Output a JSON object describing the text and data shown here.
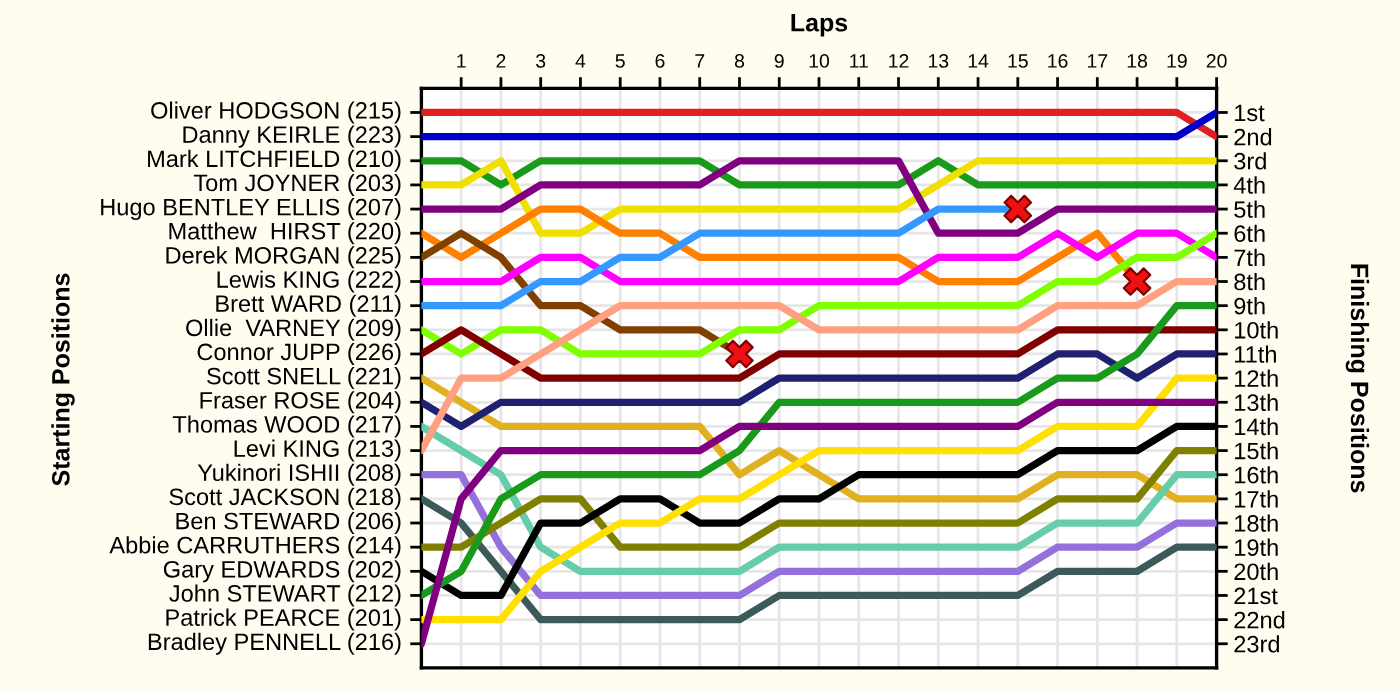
{
  "chart_data": {
    "type": "line",
    "xlabel": "Laps",
    "ylabel": "Finishing Positions",
    "x": [
      0,
      1,
      2,
      3,
      4,
      5,
      6,
      7,
      8,
      9,
      10,
      11,
      12,
      13,
      14,
      15,
      16,
      17,
      18,
      19,
      20
    ],
    "xlim": [
      0,
      20
    ],
    "xticks": [
      1,
      2,
      3,
      4,
      5,
      6,
      7,
      8,
      9,
      10,
      11,
      12,
      13,
      14,
      15,
      16,
      17,
      18,
      19,
      20
    ],
    "annotations": [
      "Starting Positions",
      "Oliver HODGSON (215)",
      "Danny KEIRLE (223)",
      "Mark LITCHFIELD (210)",
      "Tom JOYNER (203)",
      "Hugo BENTLEY ELLIS (207)",
      "Matthew  HIRST (220)",
      "Derek MORGAN (225)",
      "Lewis KING (222)",
      "Brett WARD (211)",
      "Ollie  VARNEY (209)",
      "Connor JUPP (226)",
      "Scott SNELL (221)",
      "Fraser ROSE (204)",
      "Thomas WOOD (217)",
      "Levi KING (213)",
      "Yukinori ISHII (208)",
      "Scott JACKSON (218)",
      "Ben STEWARD (206)",
      "Abbie CARRUTHERS (214)",
      "Gary EDWARDS (202)",
      "John STEWART (212)",
      "Patrick PEARCE (201)",
      "Bradley PENNELL (216)"
    ],
    "ylim": [
      24,
      0
    ],
    "yticks": [
      {
        "value": 1,
        "label": "1st"
      },
      {
        "value": 2,
        "label": "2nd"
      },
      {
        "value": 3,
        "label": "3rd"
      },
      {
        "value": 4,
        "label": "4th"
      },
      {
        "value": 5,
        "label": "5th"
      },
      {
        "value": 6,
        "label": "6th"
      },
      {
        "value": 7,
        "label": "7th"
      },
      {
        "value": 8,
        "label": "8th"
      },
      {
        "value": 9,
        "label": "9th"
      },
      {
        "value": 10,
        "label": "10th"
      },
      {
        "value": 11,
        "label": "11th"
      },
      {
        "value": 12,
        "label": "12th"
      },
      {
        "value": 13,
        "label": "13th"
      },
      {
        "value": 14,
        "label": "14th"
      },
      {
        "value": 15,
        "label": "15th"
      },
      {
        "value": 16,
        "label": "16th"
      },
      {
        "value": 17,
        "label": "17th"
      },
      {
        "value": 18,
        "label": "18th"
      },
      {
        "value": 19,
        "label": "19th"
      },
      {
        "value": 20,
        "label": "20th"
      },
      {
        "value": 21,
        "label": "21st"
      },
      {
        "value": 22,
        "label": "22nd"
      },
      {
        "value": 23,
        "label": "23rd"
      }
    ],
    "grid": true,
    "marker": "none",
    "line_style": "solid",
    "series": [
      {
        "color": "#e02020",
        "values": [
          1,
          1,
          1,
          1,
          1,
          1,
          1,
          1,
          1,
          1,
          1,
          1,
          1,
          1,
          1,
          1,
          1,
          1,
          1,
          1,
          2
        ]
      },
      {
        "color": "#0000cc",
        "values": [
          2,
          2,
          2,
          2,
          2,
          2,
          2,
          2,
          2,
          2,
          2,
          2,
          2,
          2,
          2,
          2,
          2,
          2,
          2,
          2,
          1
        ]
      },
      {
        "color": "#1a9a1a",
        "values": [
          3,
          3,
          4,
          3,
          3,
          3,
          3,
          3,
          4,
          4,
          4,
          4,
          4,
          3,
          4,
          4,
          4,
          4,
          4,
          4,
          4
        ]
      },
      {
        "color": "#f0e000",
        "values": [
          4,
          4,
          3,
          6,
          6,
          5,
          5,
          5,
          5,
          5,
          5,
          5,
          5,
          4,
          3,
          3,
          3,
          3,
          3,
          3,
          3
        ]
      },
      {
        "color": "#800080",
        "values": [
          5,
          5,
          5,
          4,
          4,
          4,
          4,
          4,
          3,
          3,
          3,
          3,
          3,
          6,
          6,
          6,
          5,
          5,
          5,
          5,
          5
        ]
      },
      {
        "color": "#ff8000",
        "values": [
          6,
          7,
          6,
          5,
          5,
          6,
          6,
          7,
          7,
          7,
          7,
          7,
          7,
          8,
          8,
          8,
          7,
          6,
          8,
          null,
          null
        ]
      },
      {
        "color": "#804000",
        "values": [
          7,
          6,
          7,
          9,
          9,
          10,
          10,
          10,
          11,
          null,
          null,
          null,
          null,
          null,
          null,
          null,
          null,
          null,
          null,
          null,
          null
        ]
      },
      {
        "color": "#ff00ff",
        "values": [
          8,
          8,
          8,
          7,
          7,
          8,
          8,
          8,
          8,
          8,
          8,
          8,
          8,
          7,
          7,
          7,
          6,
          7,
          6,
          6,
          7
        ]
      },
      {
        "color": "#3399ff",
        "values": [
          9,
          9,
          9,
          8,
          8,
          7,
          7,
          6,
          6,
          6,
          6,
          6,
          6,
          5,
          5,
          5,
          null,
          null,
          null,
          null,
          null
        ]
      },
      {
        "color": "#80ff00",
        "values": [
          10,
          11,
          10,
          10,
          11,
          11,
          11,
          11,
          10,
          10,
          9,
          9,
          9,
          9,
          9,
          9,
          8,
          8,
          7,
          7,
          6
        ]
      },
      {
        "color": "#800000",
        "values": [
          11,
          10,
          11,
          12,
          12,
          12,
          12,
          12,
          12,
          11,
          11,
          11,
          11,
          11,
          11,
          11,
          10,
          10,
          10,
          10,
          10
        ]
      },
      {
        "color": "#e0b020",
        "values": [
          12,
          13,
          14,
          14,
          14,
          14,
          14,
          14,
          16,
          15,
          16,
          17,
          17,
          17,
          17,
          17,
          16,
          16,
          16,
          17,
          17
        ]
      },
      {
        "color": "#202070",
        "values": [
          13,
          14,
          13,
          13,
          13,
          13,
          13,
          13,
          13,
          12,
          12,
          12,
          12,
          12,
          12,
          12,
          11,
          11,
          12,
          11,
          11
        ]
      },
      {
        "color": "#66ccaa",
        "values": [
          14,
          15,
          16,
          19,
          20,
          20,
          20,
          20,
          20,
          19,
          19,
          19,
          19,
          19,
          19,
          19,
          18,
          18,
          18,
          16,
          16
        ]
      },
      {
        "color": "#ffa080",
        "values": [
          15,
          12,
          12,
          11,
          10,
          9,
          9,
          9,
          9,
          9,
          10,
          10,
          10,
          10,
          10,
          10,
          9,
          9,
          9,
          8,
          8
        ]
      },
      {
        "color": "#9370db",
        "values": [
          16,
          16,
          19,
          21,
          21,
          21,
          21,
          21,
          21,
          20,
          20,
          20,
          20,
          20,
          20,
          20,
          19,
          19,
          19,
          18,
          18
        ]
      },
      {
        "color": "#3d5a5a",
        "values": [
          17,
          18,
          20,
          22,
          22,
          22,
          22,
          22,
          22,
          21,
          21,
          21,
          21,
          21,
          21,
          21,
          20,
          20,
          20,
          19,
          19
        ]
      },
      {
        "color": "#808000",
        "values": [
          19,
          19,
          18,
          17,
          17,
          19,
          19,
          19,
          19,
          18,
          18,
          18,
          18,
          18,
          18,
          18,
          17,
          17,
          17,
          15,
          15
        ]
      },
      {
        "color": "#000000",
        "values": [
          20,
          21,
          21,
          18,
          18,
          17,
          17,
          18,
          18,
          17,
          17,
          16,
          16,
          16,
          16,
          16,
          15,
          15,
          15,
          14,
          14
        ]
      },
      {
        "color": "#1a9a1a",
        "values": [
          21,
          20,
          17,
          16,
          16,
          16,
          16,
          16,
          15,
          13,
          13,
          13,
          13,
          13,
          13,
          13,
          12,
          12,
          11,
          9,
          9
        ]
      },
      {
        "color": "#ffe000",
        "values": [
          22,
          22,
          22,
          20,
          19,
          18,
          18,
          17,
          17,
          16,
          15,
          15,
          15,
          15,
          15,
          15,
          14,
          14,
          14,
          12,
          12
        ]
      },
      {
        "color": "#800080",
        "values": [
          23,
          17,
          15,
          15,
          15,
          15,
          15,
          15,
          14,
          14,
          14,
          14,
          14,
          14,
          14,
          14,
          13,
          13,
          13,
          13,
          13
        ]
      },
      {
        "type": "scatter",
        "marker": "cross",
        "color": "#ee1111",
        "x": [
          8,
          15,
          18
        ],
        "values": [
          11,
          5,
          8
        ]
      }
    ]
  }
}
